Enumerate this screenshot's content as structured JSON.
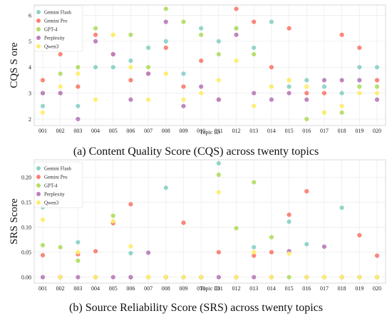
{
  "colors": {
    "Gemini Flash": "#8dd3c7",
    "Gemini Pro": "#fb8072",
    "GPT-4": "#b3de69",
    "Perplexity": "#bc80bd",
    "Qwen3": "#ffed6f"
  },
  "chart_data": [
    {
      "type": "scatter",
      "caption": "(a) Content Quality Score (CQS) across twenty topics",
      "xlabel": "Topic ID",
      "ylabel": "CQS S  ore",
      "categories": [
        "001",
        "002",
        "003",
        "004",
        "005",
        "006",
        "007",
        "008",
        "009",
        "010",
        "011",
        "012",
        "013",
        "014",
        "015",
        "016",
        "017",
        "018",
        "019",
        "020"
      ],
      "ylim": [
        1.75,
        6.4
      ],
      "yticks": [
        2,
        3,
        4,
        5,
        6
      ],
      "ytick_labels": [
        "2",
        "3",
        "4",
        "5",
        "6"
      ],
      "grid": true,
      "legend_position": "top-left",
      "series": [
        {
          "name": "Gemini Flash",
          "values": [
            2.5,
            3.0,
            2.5,
            4.0,
            4.0,
            4.25,
            4.75,
            5.0,
            3.75,
            5.5,
            5.0,
            5.5,
            4.75,
            5.75,
            3.25,
            3.5,
            3.25,
            3.0,
            4.0,
            4.0
          ]
        },
        {
          "name": "Gemini Pro",
          "values": [
            3.5,
            4.5,
            3.25,
            5.25,
            4.5,
            3.5,
            3.75,
            4.75,
            3.25,
            4.25,
            2.75,
            6.25,
            5.75,
            4.0,
            5.5,
            3.0,
            3.0,
            5.25,
            4.75,
            3.5
          ]
        },
        {
          "name": "GPT-4",
          "values": [
            3.0,
            3.75,
            4.0,
            5.5,
            5.25,
            5.25,
            4.0,
            6.25,
            5.75,
            5.25,
            4.5,
            5.5,
            4.5,
            3.25,
            3.5,
            2.0,
            2.25,
            2.25,
            3.25,
            3.25
          ]
        },
        {
          "name": "Perplexity",
          "values": [
            3.0,
            3.0,
            2.0,
            5.0,
            4.5,
            2.75,
            3.75,
            5.75,
            2.5,
            3.25,
            2.75,
            5.25,
            3.0,
            2.75,
            3.0,
            2.75,
            3.5,
            3.5,
            3.5,
            2.75
          ]
        },
        {
          "name": "Qwen3",
          "values": [
            2.25,
            3.25,
            3.75,
            2.75,
            5.25,
            4.0,
            2.75,
            3.75,
            2.75,
            3.0,
            3.5,
            4.25,
            2.5,
            3.25,
            3.5,
            3.25,
            2.25,
            2.5,
            3.0,
            3.0
          ]
        }
      ]
    },
    {
      "type": "scatter",
      "caption": "(b) Source Reliability Score (SRS) across twenty topics",
      "xlabel": "Topic ID",
      "ylabel": "SRS Score",
      "categories": [
        "001",
        "002",
        "003",
        "004",
        "005",
        "006",
        "007",
        "008",
        "009",
        "010",
        "011",
        "012",
        "013",
        "014",
        "015",
        "016",
        "017",
        "018",
        "019",
        "020"
      ],
      "ylim": [
        -0.012,
        0.235
      ],
      "yticks": [
        0.0,
        0.05,
        0.1,
        0.15,
        0.2
      ],
      "ytick_labels": [
        "0.00",
        "0.05",
        "0.10",
        "0.15",
        "0.20"
      ],
      "grid": true,
      "legend_position": "top-left",
      "series": [
        {
          "name": "Gemini Flash",
          "values": [
            0.14,
            0.0,
            0.07,
            0.0,
            0.11,
            0.048,
            0.0,
            0.179,
            0.0,
            0.0,
            0.228,
            0.0,
            0.06,
            0.0,
            0.111,
            0.066,
            0.0,
            0.139,
            0.0,
            0.0
          ]
        },
        {
          "name": "Gemini Pro",
          "values": [
            0.044,
            0.0,
            0.046,
            0.052,
            0.108,
            0.146,
            0.0,
            0.0,
            0.109,
            0.0,
            0.05,
            0.0,
            0.043,
            0.05,
            0.125,
            0.172,
            0.0,
            0.0,
            0.084,
            0.043
          ]
        },
        {
          "name": "GPT-4",
          "values": [
            0.064,
            0.06,
            0.033,
            0.0,
            0.123,
            0.0,
            0.0,
            0.0,
            0.0,
            0.0,
            0.205,
            0.098,
            0.19,
            0.08,
            0.0,
            0.0,
            0.0,
            0.0,
            0.0,
            0.0
          ]
        },
        {
          "name": "Perplexity",
          "values": [
            0.0,
            0.0,
            0.0,
            0.0,
            0.0,
            0.0,
            0.049,
            0.0,
            0.0,
            0.0,
            0.0,
            0.0,
            0.0,
            0.0,
            0.052,
            0.0,
            0.061,
            0.0,
            0.0,
            0.0
          ]
        },
        {
          "name": "Qwen3",
          "values": [
            0.115,
            0.0,
            0.05,
            0.0,
            0.112,
            0.062,
            0.0,
            0.0,
            0.0,
            0.0,
            0.17,
            0.0,
            0.05,
            0.0,
            0.047,
            0.0,
            0.0,
            0.0,
            0.0,
            0.0
          ]
        }
      ]
    }
  ]
}
